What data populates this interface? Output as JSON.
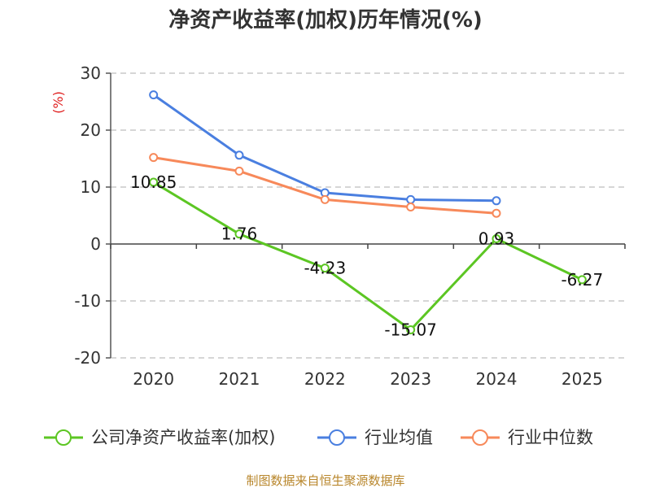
{
  "chart_data": {
    "type": "line",
    "title": "净资产收益率(加权)历年情况(%)",
    "ylabel": "(%)",
    "xlabel": "",
    "categories": [
      "2020",
      "2021",
      "2022",
      "2023",
      "2024",
      "2025"
    ],
    "ylim": [
      -20,
      30
    ],
    "yticks": [
      30,
      20,
      10,
      0,
      -10,
      -20
    ],
    "grid": true,
    "legend_position": "bottom",
    "series": [
      {
        "name": "公司净资产收益率(加权)",
        "color": "#5cc623",
        "values": [
          10.85,
          1.76,
          -4.23,
          -15.07,
          0.93,
          -6.27
        ],
        "labels": [
          "10.85",
          "1.76",
          "-4.23",
          "-15.07",
          "0.93",
          "-6.27"
        ]
      },
      {
        "name": "行业均值",
        "color": "#4a7fe0",
        "values": [
          26.2,
          15.6,
          9.0,
          7.8,
          7.6,
          null
        ]
      },
      {
        "name": "行业中位数",
        "color": "#f7895a",
        "values": [
          15.2,
          12.8,
          7.8,
          6.5,
          5.4,
          null
        ]
      }
    ],
    "source": "制图数据来自恒生聚源数据库"
  }
}
